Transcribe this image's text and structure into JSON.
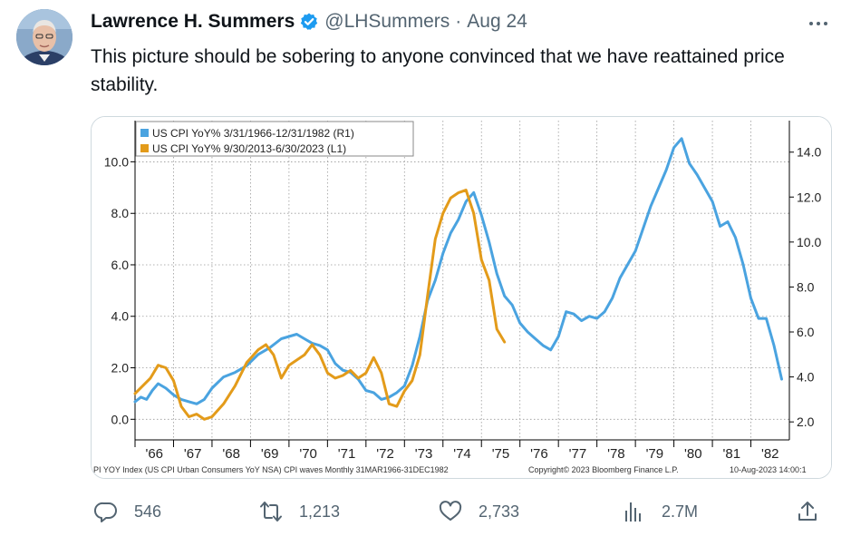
{
  "tweet": {
    "author_name": "Lawrence H. Summers",
    "handle": "@LHSummers",
    "separator": "·",
    "date": "Aug 24",
    "text": "This picture should be sobering to anyone convinced that we have reattained price stability."
  },
  "icons": {
    "verified": "verified-badge-icon",
    "more": "more-options-icon",
    "reply": "reply-icon",
    "retweet": "retweet-icon",
    "like": "like-icon",
    "views": "views-icon",
    "share": "share-icon"
  },
  "colors": {
    "brand_blue": "#1d9bf0",
    "series_r1": "#4aa3e0",
    "series_l1": "#e39b1a"
  },
  "actions": {
    "replies": "546",
    "retweets": "1,213",
    "likes": "2,733",
    "views": "2.7M"
  },
  "chart_data": {
    "type": "line",
    "legend_position": "top-left",
    "grid": true,
    "x_tick_labels": [
      "'66",
      "'67",
      "'68",
      "'69",
      "'70",
      "'71",
      "'72",
      "'73",
      "'74",
      "'75",
      "'76",
      "'77",
      "'78",
      "'79",
      "'80",
      "'81",
      "'82"
    ],
    "xlim": [
      1966.0,
      1983.0
    ],
    "left_axis": {
      "ticks": [
        "0.0",
        "2.0",
        "4.0",
        "6.0",
        "8.0",
        "10.0"
      ],
      "ylim": [
        -0.8,
        11.6
      ]
    },
    "right_axis": {
      "ticks": [
        "2.0",
        "4.0",
        "6.0",
        "8.0",
        "10.0",
        "12.0",
        "14.0"
      ],
      "ylim": [
        1.2,
        15.4
      ]
    },
    "footer": {
      "left": "PI YOY Index (US CPI Urban Consumers YoY NSA) CPI waves  Monthly 31MAR1966-31DEC1982",
      "center": "Copyright© 2023 Bloomberg Finance L.P.",
      "right": "10-Aug-2023 14:00:1"
    },
    "series": [
      {
        "name": "US CPI YoY% 3/31/1966-12/31/1982 (R1)",
        "axis": "right",
        "x": [
          1966.0,
          1966.15,
          1966.3,
          1966.45,
          1966.6,
          1966.8,
          1967.0,
          1967.2,
          1967.4,
          1967.6,
          1967.8,
          1968.0,
          1968.3,
          1968.6,
          1968.9,
          1969.2,
          1969.5,
          1969.8,
          1970.0,
          1970.2,
          1970.4,
          1970.6,
          1970.8,
          1971.0,
          1971.2,
          1971.4,
          1971.6,
          1971.8,
          1972.0,
          1972.2,
          1972.4,
          1972.6,
          1972.8,
          1973.0,
          1973.2,
          1973.4,
          1973.6,
          1973.8,
          1974.0,
          1974.2,
          1974.4,
          1974.6,
          1974.8,
          1975.0,
          1975.2,
          1975.4,
          1975.6,
          1975.8,
          1976.0,
          1976.2,
          1976.4,
          1976.6,
          1976.8,
          1977.0,
          1977.2,
          1977.4,
          1977.6,
          1977.8,
          1978.0,
          1978.2,
          1978.4,
          1978.6,
          1978.8,
          1979.0,
          1979.2,
          1979.4,
          1979.6,
          1979.8,
          1980.0,
          1980.2,
          1980.4,
          1980.6,
          1980.8,
          1981.0,
          1981.2,
          1981.4,
          1981.6,
          1981.8,
          1982.0,
          1982.2,
          1982.4,
          1982.6,
          1982.8
        ],
        "y": [
          2.9,
          3.1,
          3.0,
          3.4,
          3.7,
          3.5,
          3.2,
          3.0,
          2.9,
          2.8,
          3.0,
          3.5,
          4.0,
          4.2,
          4.5,
          5.0,
          5.3,
          5.7,
          5.8,
          5.9,
          5.7,
          5.5,
          5.4,
          5.2,
          4.6,
          4.3,
          4.2,
          3.9,
          3.4,
          3.3,
          3.0,
          3.1,
          3.3,
          3.6,
          4.5,
          5.8,
          7.4,
          8.3,
          9.5,
          10.4,
          11.0,
          11.8,
          12.2,
          11.2,
          10.0,
          8.6,
          7.6,
          7.2,
          6.4,
          6.0,
          5.7,
          5.4,
          5.2,
          5.8,
          6.9,
          6.8,
          6.5,
          6.7,
          6.6,
          6.9,
          7.5,
          8.4,
          9.0,
          9.6,
          10.6,
          11.6,
          12.4,
          13.2,
          14.2,
          14.6,
          13.5,
          13.0,
          12.4,
          11.8,
          10.7,
          10.9,
          10.2,
          9.0,
          7.5,
          6.6,
          6.6,
          5.4,
          3.9
        ]
      },
      {
        "name": "US CPI YoY% 9/30/2013-6/30/2023 (L1)",
        "axis": "left",
        "x": [
          1966.0,
          1966.2,
          1966.4,
          1966.6,
          1966.8,
          1967.0,
          1967.2,
          1967.4,
          1967.6,
          1967.8,
          1968.0,
          1968.3,
          1968.6,
          1968.9,
          1969.2,
          1969.4,
          1969.6,
          1969.8,
          1970.0,
          1970.2,
          1970.4,
          1970.6,
          1970.8,
          1971.0,
          1971.2,
          1971.4,
          1971.6,
          1971.8,
          1972.0,
          1972.2,
          1972.4,
          1972.6,
          1972.8,
          1973.0,
          1973.2,
          1973.4,
          1973.6,
          1973.8,
          1974.0,
          1974.2,
          1974.4,
          1974.6,
          1974.8,
          1975.0,
          1975.2,
          1975.4,
          1975.6
        ],
        "y": [
          1.0,
          1.3,
          1.6,
          2.1,
          2.0,
          1.5,
          0.5,
          0.1,
          0.2,
          0.0,
          0.1,
          0.6,
          1.3,
          2.2,
          2.7,
          2.9,
          2.5,
          1.6,
          2.1,
          2.3,
          2.5,
          2.9,
          2.5,
          1.8,
          1.6,
          1.7,
          1.9,
          1.6,
          1.8,
          2.4,
          1.8,
          0.6,
          0.5,
          1.1,
          1.5,
          2.5,
          4.8,
          7.0,
          8.0,
          8.6,
          8.8,
          8.9,
          8.0,
          6.2,
          5.4,
          3.5,
          3.0
        ]
      }
    ]
  }
}
